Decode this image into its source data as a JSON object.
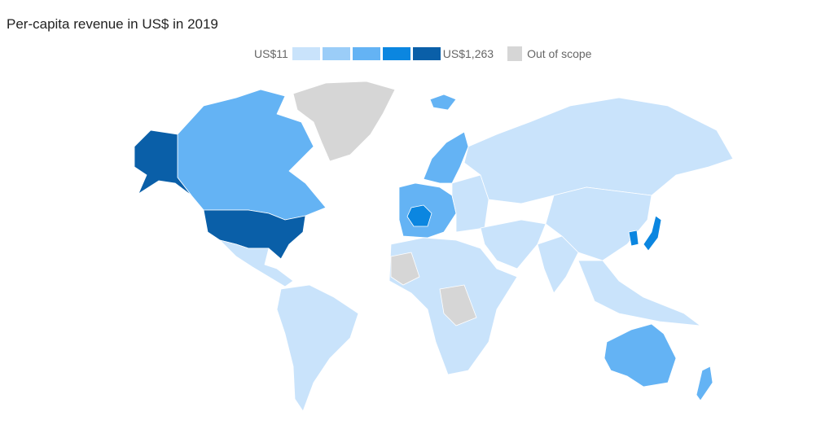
{
  "title": "Per-capita revenue in US$ in 2019",
  "legend": {
    "min_label": "US$11",
    "max_label": "US$1,263",
    "out_of_scope_label": "Out of scope",
    "scale_colors": [
      "#c9e3fb",
      "#9bcdf8",
      "#64b3f4",
      "#0b86e0",
      "#0a5fa8"
    ],
    "out_of_scope_color": "#d6d6d6"
  },
  "chart_data": {
    "type": "choropleth",
    "title": "Per-capita revenue in US$ in 2019",
    "range": [
      "US$11",
      "US$1,263"
    ],
    "tiers_by_region": {
      "United States": 5,
      "Alaska": 5,
      "Canada": 3,
      "Greenland": 0,
      "Mexico & Central America": 1,
      "South America": 1,
      "Iceland": 3,
      "Norway & Sweden": 3,
      "Western Europe": 3,
      "France": 4,
      "Eastern Europe": 1,
      "Russia & Central Asia": 1,
      "China": 1,
      "Middle East": 1,
      "India": 1,
      "Japan": 4,
      "South Korea": 4,
      "Southeast Asia": 1,
      "Africa": 1,
      "Sahara/Central Africa (out of scope)": 0,
      "Australia": 3,
      "New Zealand": 3
    }
  }
}
